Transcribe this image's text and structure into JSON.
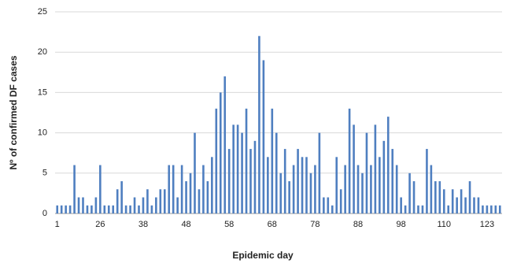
{
  "chart_data": {
    "type": "bar",
    "x_label": "Epidemic day",
    "y_label": "Nº of confirmed DF cases",
    "color": "#4f7fc0",
    "grid": true,
    "ylim": [
      0,
      25
    ],
    "yticks": [
      0,
      5,
      10,
      15,
      20,
      25
    ],
    "categories": [
      "1",
      null,
      null,
      null,
      null,
      null,
      null,
      null,
      null,
      null,
      "26",
      null,
      null,
      null,
      null,
      null,
      null,
      null,
      null,
      null,
      "38",
      null,
      null,
      null,
      null,
      null,
      null,
      null,
      null,
      null,
      "48",
      null,
      null,
      null,
      null,
      null,
      null,
      null,
      null,
      null,
      "58",
      null,
      null,
      null,
      null,
      null,
      null,
      null,
      null,
      null,
      "68",
      null,
      null,
      null,
      null,
      null,
      null,
      null,
      null,
      null,
      "78",
      null,
      null,
      null,
      null,
      null,
      null,
      null,
      null,
      null,
      "88",
      null,
      null,
      null,
      null,
      null,
      null,
      null,
      null,
      null,
      "98",
      null,
      null,
      null,
      null,
      null,
      null,
      null,
      null,
      null,
      "110",
      null,
      null,
      null,
      null,
      null,
      null,
      null,
      null,
      null,
      "123",
      null,
      null,
      null
    ],
    "values": [
      1,
      1,
      1,
      1,
      6,
      2,
      2,
      1,
      1,
      2,
      6,
      1,
      1,
      1,
      3,
      4,
      1,
      1,
      2,
      1,
      2,
      3,
      1,
      2,
      3,
      3,
      6,
      6,
      2,
      6,
      4,
      5,
      10,
      3,
      6,
      4,
      7,
      13,
      15,
      17,
      8,
      11,
      11,
      10,
      13,
      8,
      9,
      22,
      19,
      7,
      13,
      10,
      5,
      8,
      4,
      6,
      8,
      7,
      7,
      5,
      6,
      10,
      2,
      2,
      1,
      7,
      3,
      6,
      13,
      11,
      6,
      5,
      10,
      6,
      11,
      7,
      9,
      12,
      8,
      6,
      2,
      1,
      5,
      4,
      1,
      1,
      8,
      6,
      4,
      4,
      3,
      1,
      3,
      2,
      3,
      2,
      4,
      2,
      2,
      1,
      1,
      1,
      1,
      1
    ]
  }
}
